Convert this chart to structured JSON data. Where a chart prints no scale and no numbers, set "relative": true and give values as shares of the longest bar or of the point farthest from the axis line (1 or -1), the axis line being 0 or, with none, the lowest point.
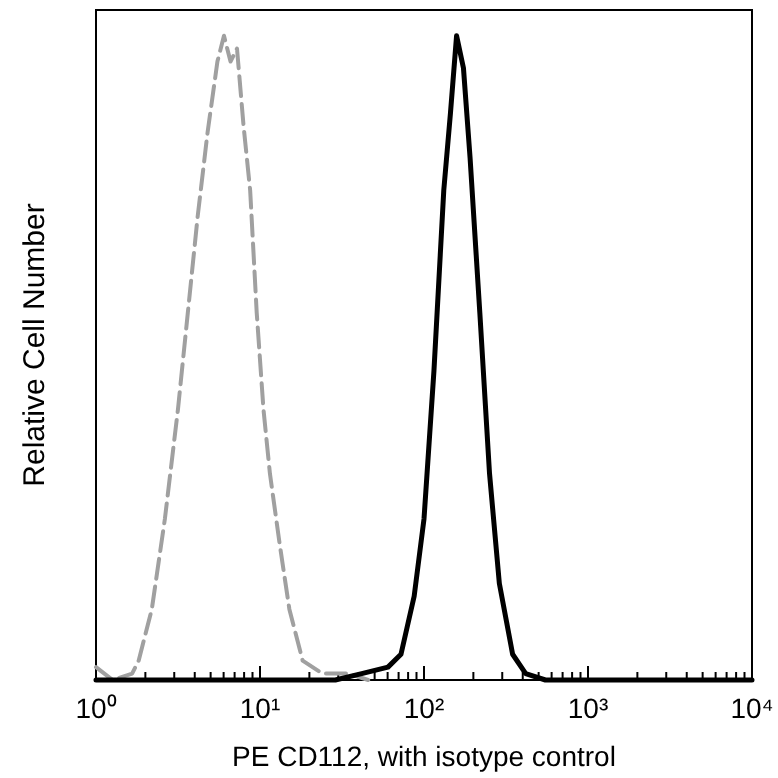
{
  "chart_data": {
    "type": "line",
    "xlabel": "PE  CD112,  with isotype control",
    "ylabel": "Relative Cell Number",
    "relative": true,
    "log": "x",
    "tick_labels": "x",
    "xlim": [
      1,
      10000
    ],
    "xticks": [
      {
        "value": 1,
        "label": "10⁰"
      },
      {
        "value": 2,
        "label": null
      },
      {
        "value": 3,
        "label": null
      },
      {
        "value": 4,
        "label": null
      },
      {
        "value": 5,
        "label": null
      },
      {
        "value": 6,
        "label": null
      },
      {
        "value": 7,
        "label": null
      },
      {
        "value": 8,
        "label": null
      },
      {
        "value": 9,
        "label": null
      },
      {
        "value": 10,
        "label": "10¹"
      },
      {
        "value": 20,
        "label": null
      },
      {
        "value": 30,
        "label": null
      },
      {
        "value": 40,
        "label": null
      },
      {
        "value": 50,
        "label": null
      },
      {
        "value": 60,
        "label": null
      },
      {
        "value": 70,
        "label": null
      },
      {
        "value": 80,
        "label": null
      },
      {
        "value": 90,
        "label": null
      },
      {
        "value": 100,
        "label": "10²"
      },
      {
        "value": 200,
        "label": null
      },
      {
        "value": 300,
        "label": null
      },
      {
        "value": 400,
        "label": null
      },
      {
        "value": 500,
        "label": null
      },
      {
        "value": 600,
        "label": null
      },
      {
        "value": 700,
        "label": null
      },
      {
        "value": 800,
        "label": null
      },
      {
        "value": 900,
        "label": null
      },
      {
        "value": 1000,
        "label": "10³"
      },
      {
        "value": 2000,
        "label": null
      },
      {
        "value": 3000,
        "label": null
      },
      {
        "value": 4000,
        "label": null
      },
      {
        "value": 5000,
        "label": null
      },
      {
        "value": 6000,
        "label": null
      },
      {
        "value": 7000,
        "label": null
      },
      {
        "value": 8000,
        "label": null
      },
      {
        "value": 9000,
        "label": null
      },
      {
        "value": 10000,
        "label": "10⁴"
      }
    ],
    "series": [
      {
        "color": "#a0a0a0",
        "line_style": "dashed",
        "x": [
          1,
          1.26,
          1.66,
          1.82,
          2.19,
          2.63,
          3.16,
          3.63,
          4.17,
          4.79,
          5.5,
          6.03,
          6.61,
          7.24,
          7.94,
          8.71,
          9.55,
          10.5,
          11.5,
          13.2,
          15.1,
          18.2,
          24,
          34.7,
          45.7
        ],
        "values": [
          0.02,
          0,
          0.01,
          0.03,
          0.11,
          0.25,
          0.42,
          0.57,
          0.72,
          0.85,
          0.96,
          1,
          0.96,
          0.98,
          0.86,
          0.76,
          0.57,
          0.42,
          0.32,
          0.21,
          0.11,
          0.03,
          0.01,
          0.01,
          0
        ]
      },
      {
        "color": "#000000",
        "line_style": "solid",
        "x": [
          1,
          28.8,
          41.7,
          60.3,
          72.4,
          87.1,
          100,
          115,
          132,
          145,
          158,
          174,
          191,
          219,
          251,
          288,
          347,
          417,
          550,
          10000
        ],
        "values": [
          0,
          0,
          0.01,
          0.02,
          0.04,
          0.13,
          0.25,
          0.48,
          0.76,
          0.88,
          1,
          0.95,
          0.81,
          0.57,
          0.32,
          0.15,
          0.04,
          0.01,
          0,
          0
        ]
      }
    ]
  }
}
